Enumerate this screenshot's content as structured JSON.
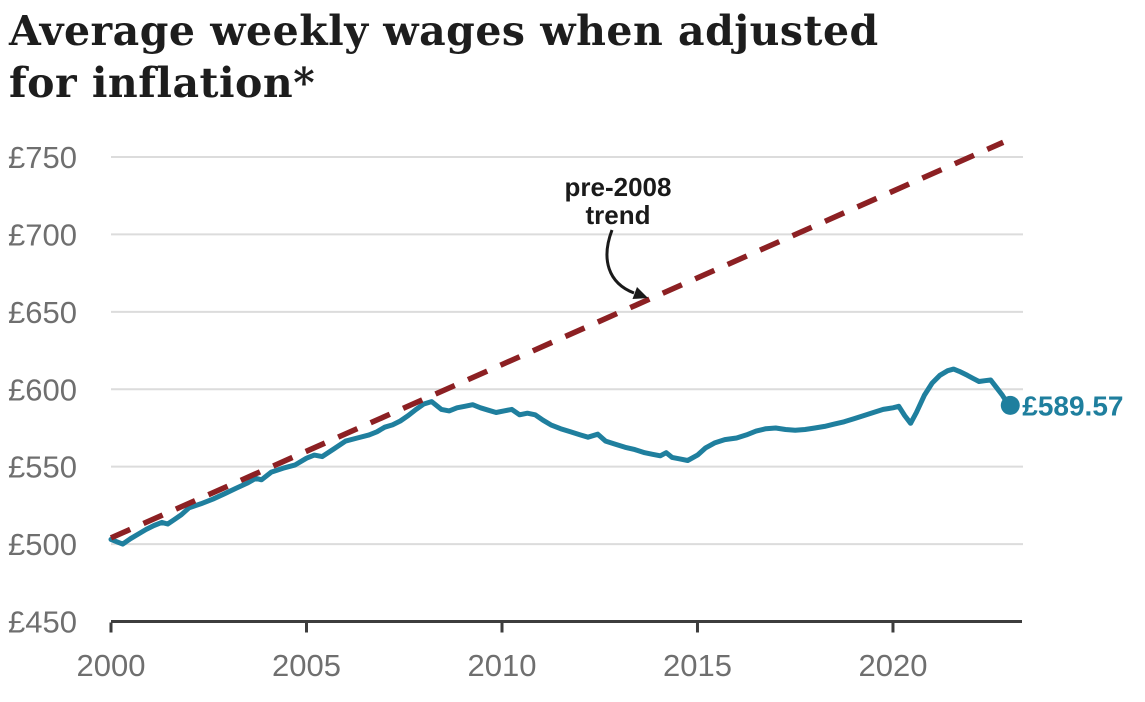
{
  "chart_data": {
    "type": "line",
    "title": "Average weekly wages when adjusted for inflation*",
    "title_lines": [
      "Average weekly wages when adjusted",
      "for inflation*"
    ],
    "xlabel": "",
    "ylabel": "",
    "x_range": [
      2000,
      2023.3
    ],
    "y_range": [
      450,
      750
    ],
    "grid": "horizontal",
    "legend": "none",
    "y_ticks": [
      {
        "value": 750,
        "label": "£750"
      },
      {
        "value": 700,
        "label": "£700"
      },
      {
        "value": 650,
        "label": "£650"
      },
      {
        "value": 600,
        "label": "£600"
      },
      {
        "value": 550,
        "label": "£550"
      },
      {
        "value": 500,
        "label": "£500"
      },
      {
        "value": 450,
        "label": "£450"
      }
    ],
    "x_ticks": [
      {
        "value": 2000,
        "label": "2000"
      },
      {
        "value": 2005,
        "label": "2005"
      },
      {
        "value": 2010,
        "label": "2010"
      },
      {
        "value": 2015,
        "label": "2015"
      },
      {
        "value": 2020,
        "label": "2020"
      }
    ],
    "series": [
      {
        "name": "Average weekly wages (inflation adjusted)",
        "style": "solid",
        "points": [
          [
            2000,
            503
          ],
          [
            2000.15,
            501.5
          ],
          [
            2000.3,
            500
          ],
          [
            2000.5,
            503.5
          ],
          [
            2000.7,
            506.5
          ],
          [
            2000.9,
            509.5
          ],
          [
            2001.1,
            512
          ],
          [
            2001.3,
            514
          ],
          [
            2001.45,
            513
          ],
          [
            2001.6,
            515.5
          ],
          [
            2001.8,
            519
          ],
          [
            2002,
            523.5
          ],
          [
            2002.3,
            526
          ],
          [
            2002.6,
            529
          ],
          [
            2002.9,
            532.5
          ],
          [
            2003.2,
            536
          ],
          [
            2003.5,
            539.5
          ],
          [
            2003.7,
            542.5
          ],
          [
            2003.85,
            541.5
          ],
          [
            2004.1,
            546.5
          ],
          [
            2004.4,
            549
          ],
          [
            2004.7,
            551
          ],
          [
            2005,
            555.5
          ],
          [
            2005.2,
            557.5
          ],
          [
            2005.4,
            556.5
          ],
          [
            2005.7,
            561.5
          ],
          [
            2006,
            566.5
          ],
          [
            2006.3,
            568.5
          ],
          [
            2006.6,
            570.5
          ],
          [
            2006.8,
            572.5
          ],
          [
            2007,
            575.5
          ],
          [
            2007.2,
            577
          ],
          [
            2007.4,
            579.5
          ],
          [
            2007.6,
            583
          ],
          [
            2007.8,
            587
          ],
          [
            2008,
            590.5
          ],
          [
            2008.2,
            592
          ],
          [
            2008.45,
            587
          ],
          [
            2008.65,
            586
          ],
          [
            2008.85,
            588
          ],
          [
            2009.05,
            589
          ],
          [
            2009.25,
            590
          ],
          [
            2009.45,
            588
          ],
          [
            2009.65,
            586.5
          ],
          [
            2009.85,
            585
          ],
          [
            2010.05,
            586
          ],
          [
            2010.25,
            587
          ],
          [
            2010.45,
            583.5
          ],
          [
            2010.65,
            584.5
          ],
          [
            2010.85,
            583.5
          ],
          [
            2011.05,
            580
          ],
          [
            2011.25,
            577
          ],
          [
            2011.5,
            574.5
          ],
          [
            2011.75,
            572.5
          ],
          [
            2012,
            570.5
          ],
          [
            2012.2,
            569
          ],
          [
            2012.45,
            571
          ],
          [
            2012.65,
            566.5
          ],
          [
            2012.9,
            564.5
          ],
          [
            2013.15,
            562.5
          ],
          [
            2013.4,
            561
          ],
          [
            2013.65,
            559
          ],
          [
            2013.85,
            558
          ],
          [
            2014.05,
            557
          ],
          [
            2014.2,
            559
          ],
          [
            2014.35,
            556
          ],
          [
            2014.55,
            555
          ],
          [
            2014.75,
            554
          ],
          [
            2015,
            557.5
          ],
          [
            2015.2,
            562
          ],
          [
            2015.45,
            565.5
          ],
          [
            2015.7,
            567.5
          ],
          [
            2016,
            568.5
          ],
          [
            2016.25,
            570.5
          ],
          [
            2016.5,
            573
          ],
          [
            2016.75,
            574.5
          ],
          [
            2017,
            575
          ],
          [
            2017.25,
            574
          ],
          [
            2017.5,
            573.5
          ],
          [
            2017.75,
            574
          ],
          [
            2018,
            575
          ],
          [
            2018.25,
            576
          ],
          [
            2018.5,
            577.5
          ],
          [
            2018.75,
            579
          ],
          [
            2019,
            581
          ],
          [
            2019.25,
            583
          ],
          [
            2019.5,
            585
          ],
          [
            2019.75,
            587
          ],
          [
            2020,
            588
          ],
          [
            2020.15,
            589
          ],
          [
            2020.3,
            583
          ],
          [
            2020.45,
            578
          ],
          [
            2020.6,
            585
          ],
          [
            2020.8,
            596
          ],
          [
            2021,
            604
          ],
          [
            2021.2,
            609
          ],
          [
            2021.4,
            612
          ],
          [
            2021.55,
            613
          ],
          [
            2021.7,
            611.5
          ],
          [
            2021.9,
            609
          ],
          [
            2022.05,
            607
          ],
          [
            2022.2,
            605
          ],
          [
            2022.35,
            605.5
          ],
          [
            2022.5,
            606
          ],
          [
            2022.65,
            601
          ],
          [
            2022.8,
            596
          ],
          [
            2022.9,
            592
          ],
          [
            2023,
            589.57
          ]
        ]
      },
      {
        "name": "pre-2008 trend",
        "style": "dashed",
        "points": [
          [
            2000,
            504
          ],
          [
            2022.82,
            759.5
          ]
        ]
      }
    ],
    "annotation": {
      "text": "pre-2008 trend",
      "lines": [
        "pre-2008",
        "trend"
      ],
      "arrow_target_year": 2013.7
    },
    "end_label": "£589.57",
    "end_value": 589.57
  },
  "colors": {
    "wage_line": "#1f7f9e",
    "trend_line": "#8c2023",
    "grid": "#dcdcdc",
    "axis": "#3d3d3d",
    "tick_labels": "#6f6f6f",
    "title": "#1d1d1d",
    "annotation": "#1a1a1a",
    "background": "#ffffff"
  }
}
